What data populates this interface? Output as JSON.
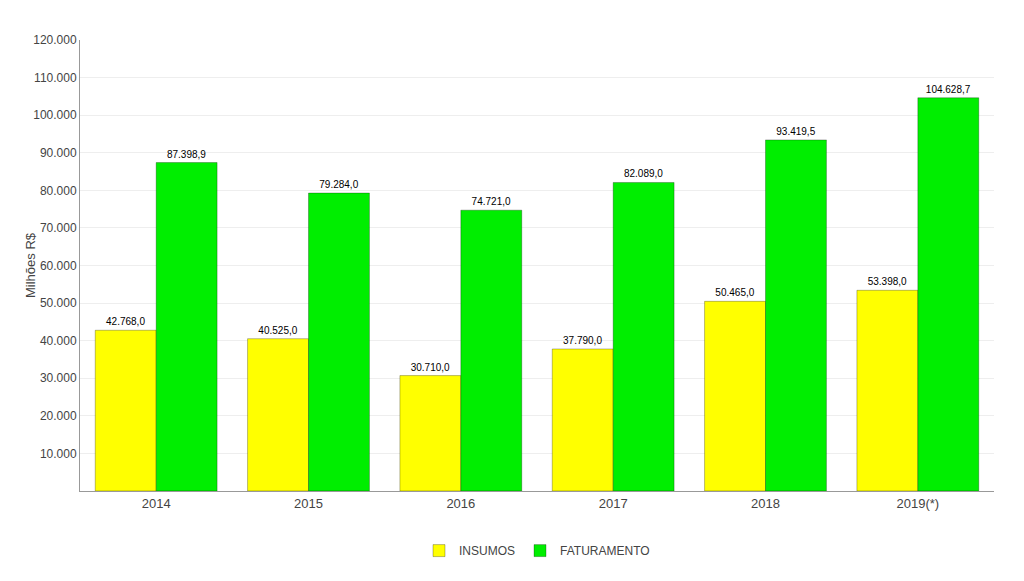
{
  "chart_data": {
    "type": "bar",
    "categories": [
      "2014",
      "2015",
      "2016",
      "2017",
      "2018",
      "2019(*)"
    ],
    "series": [
      {
        "name": "INSUMOS",
        "color": "#FFFF00",
        "values": [
          42768.0,
          40525.0,
          30710.0,
          37790.0,
          50465.0,
          53398.0
        ],
        "value_labels": [
          "42.768,0",
          "40.525,0",
          "30.710,0",
          "37.790,0",
          "50.465,0",
          "53.398,0"
        ]
      },
      {
        "name": "FATURAMENTO",
        "color": "#00EE00",
        "values": [
          87398.9,
          79284.0,
          74721.0,
          82089.0,
          93419.5,
          104628.7
        ],
        "value_labels": [
          "87.398,9",
          "79.284,0",
          "74.721,0",
          "82.089,0",
          "93.419,5",
          "104.628,7"
        ]
      }
    ],
    "ylabel": "Milhões R$",
    "ylim": [
      0,
      120000
    ],
    "yticks": [
      {
        "value": 10000,
        "label": "10.000"
      },
      {
        "value": 20000,
        "label": "20.000"
      },
      {
        "value": 30000,
        "label": "30.000"
      },
      {
        "value": 40000,
        "label": "40.000"
      },
      {
        "value": 50000,
        "label": "50.000"
      },
      {
        "value": 60000,
        "label": "60.000"
      },
      {
        "value": 70000,
        "label": "70.000"
      },
      {
        "value": 80000,
        "label": "80.000"
      },
      {
        "value": 90000,
        "label": "90.000"
      },
      {
        "value": 100000,
        "label": "100.000"
      },
      {
        "value": 110000,
        "label": "110.000"
      },
      {
        "value": 120000,
        "label": "120.000"
      }
    ],
    "grid": true,
    "legend": "bottom",
    "data_labels": true
  }
}
